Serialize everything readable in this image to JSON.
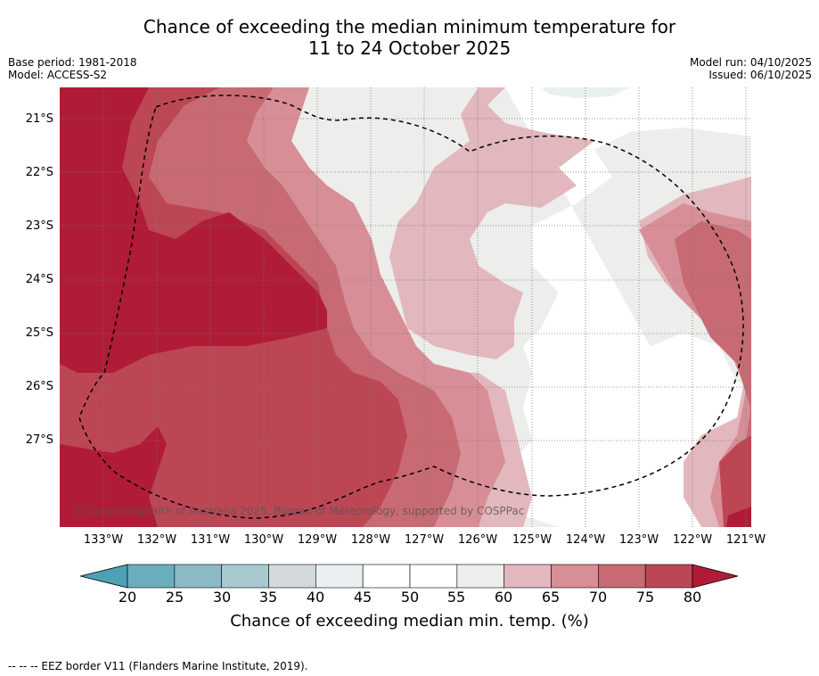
{
  "title": {
    "line1": "Chance of exceeding the median minimum temperature for",
    "line2": "11 to 24 October 2025"
  },
  "meta_left": {
    "base_period": "Base period: 1981-2018",
    "model": "Model: ACCESS-S2"
  },
  "meta_right": {
    "model_run": "Model run: 04/10/2025",
    "issued": "Issued: 06/10/2025"
  },
  "map": {
    "lat_labels": [
      "21°S",
      "22°S",
      "23°S",
      "24°S",
      "25°S",
      "26°S",
      "27°S"
    ],
    "lon_labels": [
      "133°W",
      "132°W",
      "131°W",
      "130°W",
      "129°W",
      "128°W",
      "127°W",
      "126°W",
      "125°W",
      "124°W",
      "123°W",
      "122°W",
      "121°W"
    ],
    "copyright": "© Commonwealth of Australia 2025, Bureau of Meteorology, supported by COSPPac"
  },
  "colorbar": {
    "ticks": [
      "20",
      "25",
      "30",
      "35",
      "40",
      "45",
      "50",
      "55",
      "60",
      "65",
      "70",
      "75",
      "80"
    ],
    "label": "Chance of exceeding median min. temp. (%)",
    "colors": [
      "#6aaebe",
      "#8bb9c5",
      "#a8c9cf",
      "#d4d9db",
      "#eaeff1",
      "#ffffff",
      "#ffffff",
      "#ededeb",
      "#e2b7bd",
      "#d88e96",
      "#c86a73",
      "#bd4655"
    ],
    "under_color": "#4ea1b4",
    "over_color": "#b01c37"
  },
  "footnote": "--  --  -- EEZ border V11 (Flanders Marine Institute, 2019)."
}
